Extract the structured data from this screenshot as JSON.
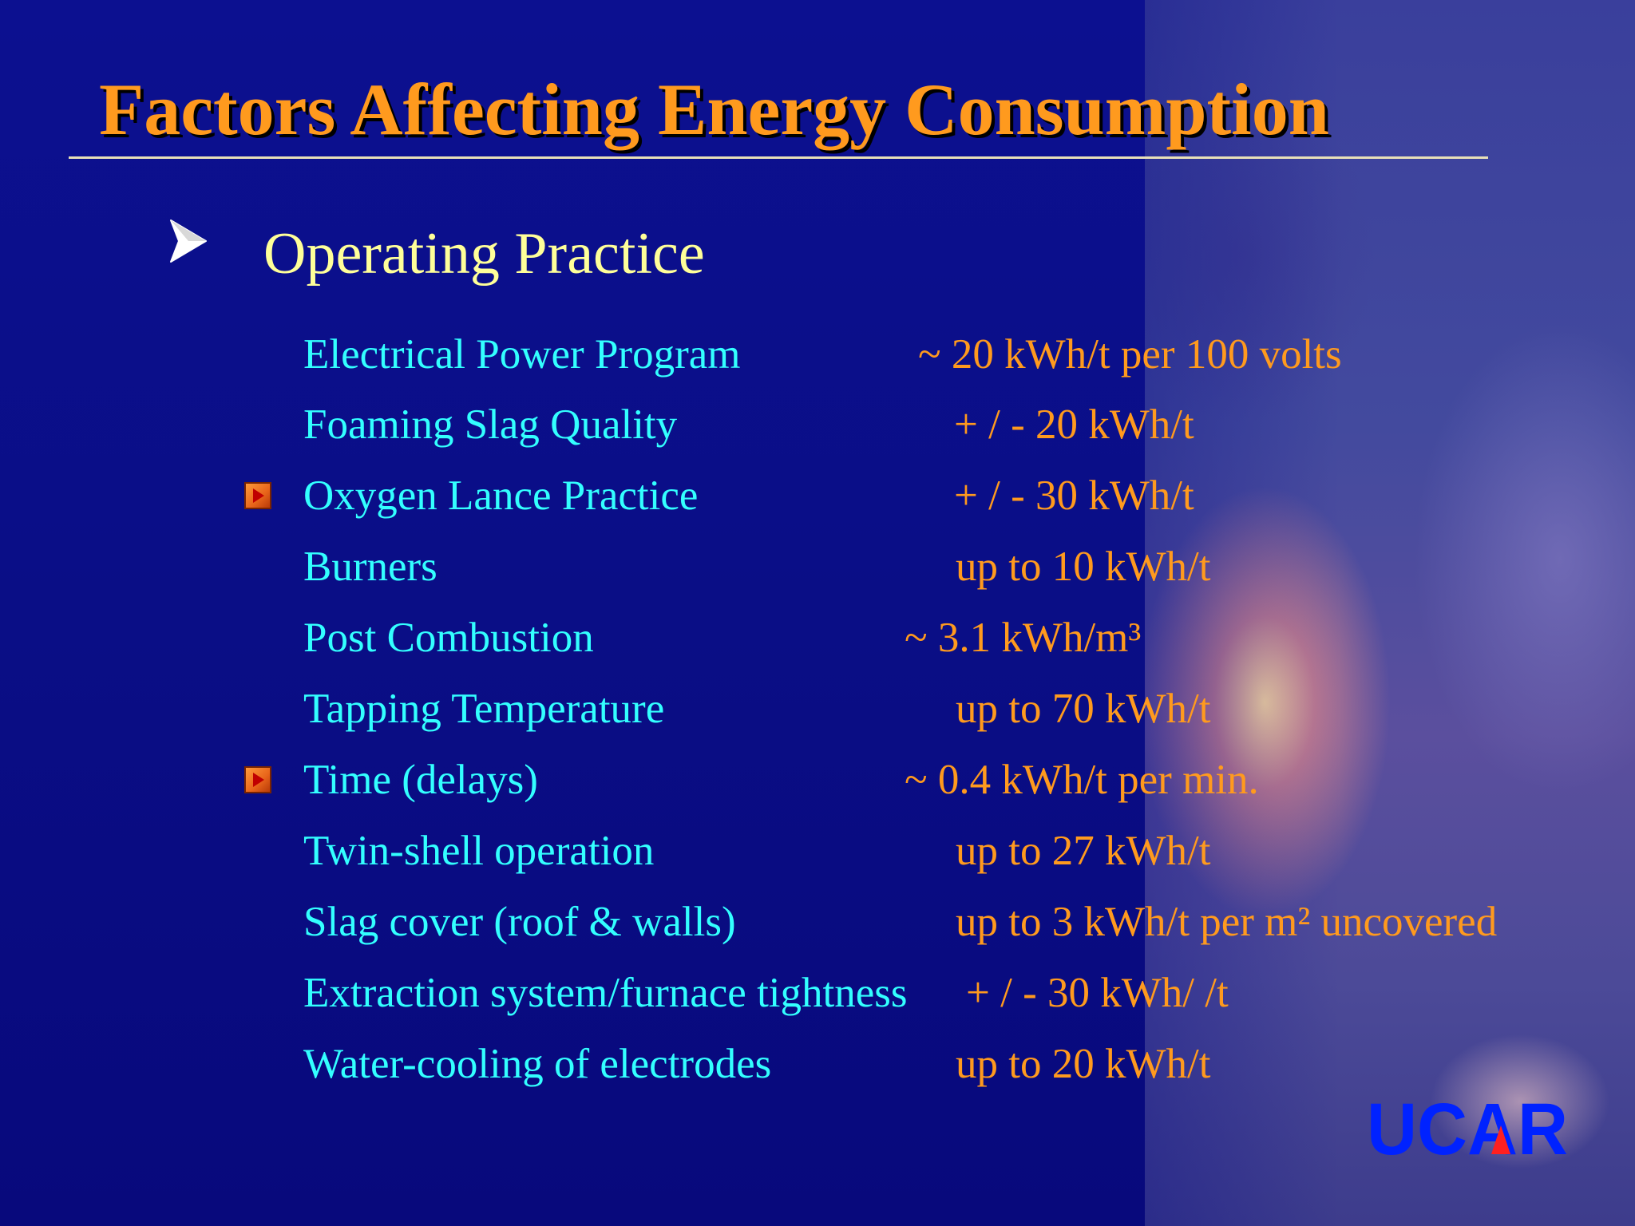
{
  "slide": {
    "title": "Factors Affecting Energy Consumption",
    "section_title": "Operating Practice",
    "rows": [
      {
        "label": "Electrical Power Program",
        "value": "~ 20 kWh/t per 100 volts",
        "bullet": false
      },
      {
        "label": "Foaming Slag Quality",
        "value": "+ / -    20 kWh/t",
        "bullet": false
      },
      {
        "label": "Oxygen Lance Practice",
        "value": "+ / -    30 kWh/t",
        "bullet": true
      },
      {
        "label": "Burners",
        "value": "up to 10 kWh/t",
        "bullet": false
      },
      {
        "label": "Post Combustion",
        "value": "~  3.1 kWh/m³",
        "bullet": false
      },
      {
        "label": "Tapping Temperature",
        "value": "up to 70 kWh/t",
        "bullet": false
      },
      {
        "label": "Time (delays)",
        "value": "~  0.4 kWh/t per min.",
        "bullet": true
      },
      {
        "label": "Twin-shell operation",
        "value": "up to 27 kWh/t",
        "bullet": false
      },
      {
        "label": "Slag cover (roof & walls)",
        "value": "up to 3 kWh/t per m² uncovered",
        "bullet": false
      },
      {
        "label": "Extraction system/furnace tightness",
        "value": "+ / -    30 kWh/ /t",
        "bullet": false
      },
      {
        "label": "Water-cooling of electrodes",
        "value": "up to 20 kWh/t",
        "bullet": false
      }
    ],
    "logo": {
      "text": "UCAR",
      "color": "#0022ff",
      "accent": "#ff2020"
    }
  },
  "colors": {
    "background": "#0a0e86",
    "title": "#ff9a1e",
    "section_title": "#ffff99",
    "label": "#33ffff",
    "value": "#ff9a1e"
  },
  "icons": {
    "section_bullet": "arrowhead-icon",
    "row_bullet": "play-icon"
  }
}
